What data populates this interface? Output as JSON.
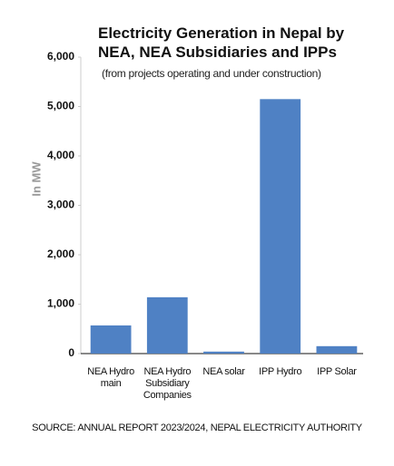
{
  "chart_data": {
    "type": "bar",
    "title": "Electricity Generation in Nepal by NEA, NEA Subsidiaries and IPPs",
    "subtitle": "(from projects operating and under construction)",
    "y_label": "In MW",
    "source": "SOURCE: ANNUAL REPORT 2023/2024, NEPAL ELECTRICITY AUTHORITY",
    "categories": [
      "NEA Hydro main",
      "NEA Hydro Subsidiary Companies",
      "NEA solar",
      "IPP Hydro",
      "IPP Solar"
    ],
    "values": [
      570,
      1140,
      40,
      5150,
      150
    ],
    "color": "#4f81c4",
    "ylim": [
      0,
      6000
    ],
    "yticks": [
      0,
      {
        "value": 1000,
        "label": "1,000"
      },
      {
        "value": 2000,
        "label": "2,000"
      },
      {
        "value": 3000,
        "label": "3,000"
      },
      {
        "value": 4000,
        "label": "4,000"
      },
      {
        "value": 5000,
        "label": "5,000"
      },
      {
        "value": 6000,
        "label": "6,000"
      }
    ],
    "grid": false
  }
}
